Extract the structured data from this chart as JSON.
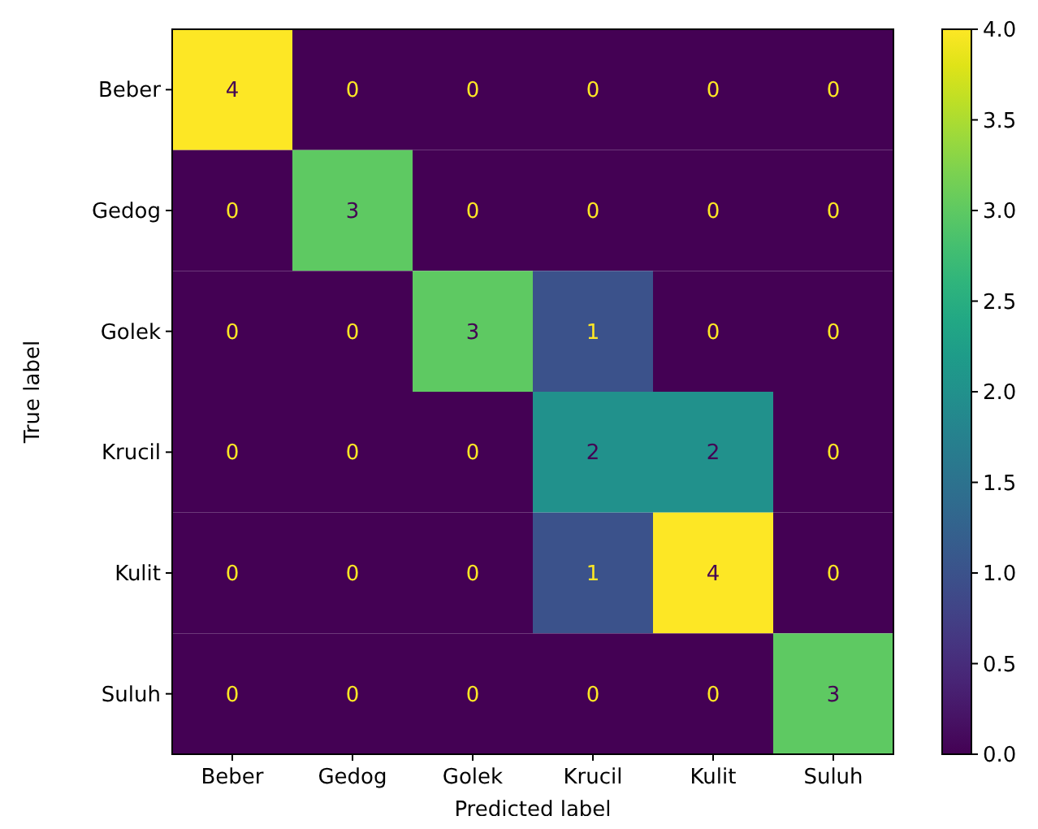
{
  "chart_data": {
    "type": "heatmap",
    "xlabel": "Predicted label",
    "ylabel": "True label",
    "categories": [
      "Beber",
      "Gedog",
      "Golek",
      "Krucil",
      "Kulit",
      "Suluh"
    ],
    "y_categories": [
      "Beber",
      "Gedog",
      "Golek",
      "Krucil",
      "Kulit",
      "Suluh"
    ],
    "cells": [
      [
        4,
        0,
        0,
        0,
        0,
        0
      ],
      [
        0,
        3,
        0,
        0,
        0,
        0
      ],
      [
        0,
        0,
        3,
        1,
        0,
        0
      ],
      [
        0,
        0,
        0,
        2,
        2,
        0
      ],
      [
        0,
        0,
        0,
        1,
        4,
        0
      ],
      [
        0,
        0,
        0,
        0,
        0,
        3
      ]
    ],
    "data_labels": true,
    "clim": [
      0,
      4
    ],
    "cticks": [
      {
        "value": 0,
        "label": "0.0"
      },
      {
        "value": 0.5,
        "label": "0.5"
      },
      {
        "value": 1,
        "label": "1.0"
      },
      {
        "value": 1.5,
        "label": "1.5"
      },
      {
        "value": 2,
        "label": "2.0"
      },
      {
        "value": 2.5,
        "label": "2.5"
      },
      {
        "value": 3,
        "label": "3.0"
      },
      {
        "value": 3.5,
        "label": "3.5"
      },
      {
        "value": 4,
        "label": "4.0"
      }
    ]
  }
}
